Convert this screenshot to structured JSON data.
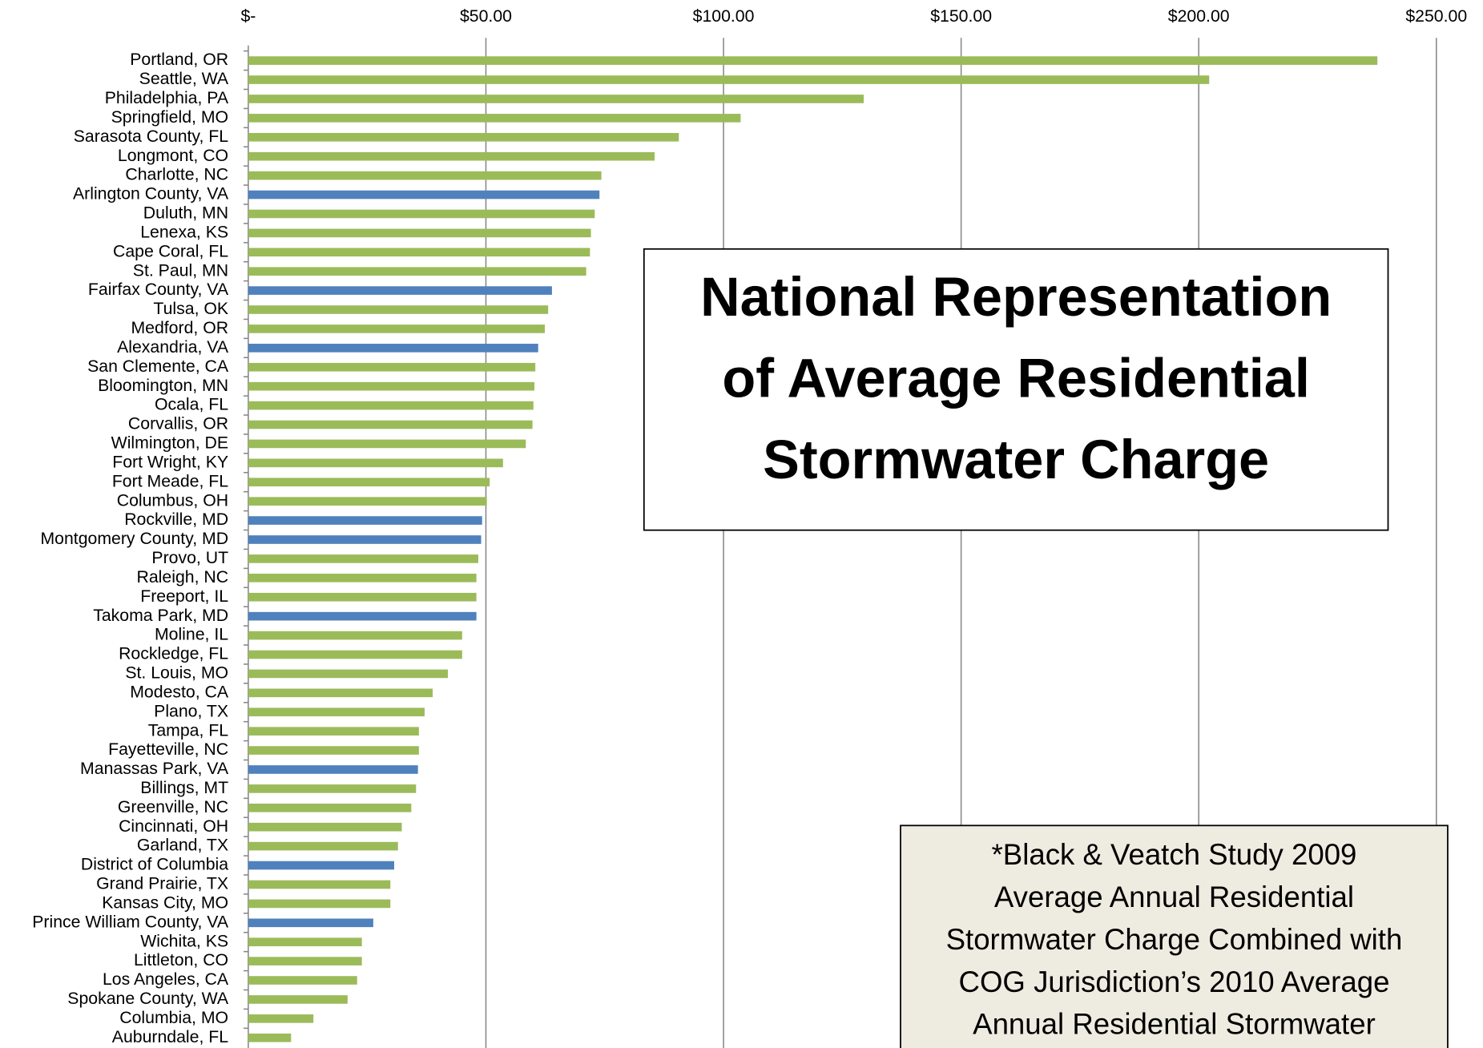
{
  "chart_data": {
    "type": "hbar",
    "title": [
      "National Representation",
      "of Average Residential",
      "Stormwater Charge"
    ],
    "annotations": [
      "*Black & Veatch Study 2009",
      "Average Annual Residential",
      "Stormwater Charge Combined with",
      "COG Jurisdiction’s 2010 Average",
      "Annual Residential Stormwater"
    ],
    "categories": [
      "Portland, OR",
      "Seattle, WA",
      "Philadelphia, PA",
      "Springfield,  MO",
      "Sarasota County, FL",
      "Longmont, CO",
      "Charlotte, NC",
      "Arlington County, VA",
      "Duluth, MN",
      "Lenexa, KS",
      "Cape Coral, FL",
      "St. Paul, MN",
      "Fairfax County, VA",
      "Tulsa, OK",
      "Medford, OR",
      "Alexandria, VA",
      "San Clemente, CA",
      "Bloomington, MN",
      "Ocala, FL",
      "Corvallis, OR",
      "Wilmington, DE",
      "Fort Wright, KY",
      "Fort Meade, FL",
      "Columbus, OH",
      "Rockville, MD",
      "Montgomery County, MD",
      "Provo, UT",
      "Raleigh, NC",
      "Freeport, IL",
      "Takoma Park, MD",
      "Moline, IL",
      "Rockledge, FL",
      "St. Louis, MO",
      "Modesto, CA",
      "Plano, TX",
      "Tampa, FL",
      "Fayetteville, NC",
      "Manassas Park, VA",
      "Billings, MT",
      "Greenville, NC",
      "Cincinnati, OH",
      "Garland, TX",
      "District of Columbia",
      "Grand Prairie, TX",
      "Kansas City, MO",
      "Prince William County, VA",
      "Wichita, KS",
      "Littleton, CO",
      "Los Angeles, CA",
      "Spokane County, WA",
      "Columbia, MO",
      "Auburndale, FL"
    ],
    "values": [
      237.6,
      202.2,
      129.5,
      103.6,
      90.6,
      85.5,
      74.3,
      73.9,
      72.9,
      72.1,
      71.9,
      71.1,
      63.9,
      63.1,
      62.4,
      61.0,
      60.4,
      60.2,
      60.0,
      59.8,
      58.4,
      53.6,
      50.8,
      50.2,
      49.2,
      49.0,
      48.4,
      48.0,
      48.0,
      48.0,
      45.0,
      45.0,
      42.0,
      38.8,
      37.1,
      35.9,
      35.9,
      35.7,
      35.3,
      34.3,
      32.3,
      31.5,
      30.7,
      29.9,
      29.9,
      26.3,
      23.9,
      23.9,
      22.9,
      20.9,
      13.7,
      9.0
    ],
    "colors": [
      "#9bbb59",
      "#9bbb59",
      "#9bbb59",
      "#9bbb59",
      "#9bbb59",
      "#9bbb59",
      "#9bbb59",
      "#4f81bd",
      "#9bbb59",
      "#9bbb59",
      "#9bbb59",
      "#9bbb59",
      "#4f81bd",
      "#9bbb59",
      "#9bbb59",
      "#4f81bd",
      "#9bbb59",
      "#9bbb59",
      "#9bbb59",
      "#9bbb59",
      "#9bbb59",
      "#9bbb59",
      "#9bbb59",
      "#9bbb59",
      "#4f81bd",
      "#4f81bd",
      "#9bbb59",
      "#9bbb59",
      "#9bbb59",
      "#4f81bd",
      "#9bbb59",
      "#9bbb59",
      "#9bbb59",
      "#9bbb59",
      "#9bbb59",
      "#9bbb59",
      "#9bbb59",
      "#4f81bd",
      "#9bbb59",
      "#9bbb59",
      "#9bbb59",
      "#9bbb59",
      "#4f81bd",
      "#9bbb59",
      "#9bbb59",
      "#4f81bd",
      "#9bbb59",
      "#9bbb59",
      "#9bbb59",
      "#9bbb59",
      "#9bbb59",
      "#9bbb59"
    ],
    "xlim": [
      0,
      250
    ],
    "xticks": [
      {
        "value": 0,
        "label": "$-"
      },
      {
        "value": 50,
        "label": "$50.00"
      },
      {
        "value": 100,
        "label": "$100.00"
      },
      {
        "value": 150,
        "label": "$150.00"
      },
      {
        "value": 200,
        "label": "$200.00"
      },
      {
        "value": 250,
        "label": "$250.00"
      }
    ],
    "grid": true
  }
}
